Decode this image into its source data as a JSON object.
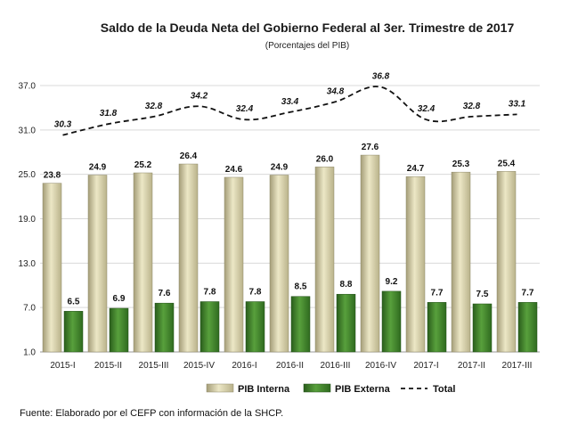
{
  "chart_data": {
    "type": "bar",
    "title": "Saldo de la Deuda Neta del Gobierno Federal al 3er. Trimestre de 2017",
    "subtitle": "(Porcentajes del PIB)",
    "categories": [
      "2015-I",
      "2015-II",
      "2015-III",
      "2015-IV",
      "2016-I",
      "2016-II",
      "2016-III",
      "2016-IV",
      "2017-I",
      "2017-II",
      "2017-III"
    ],
    "series": [
      {
        "name": "PIB Interna",
        "type": "bar",
        "color": "#cfc9a2",
        "values": [
          23.8,
          24.9,
          25.2,
          26.4,
          24.6,
          24.9,
          26.0,
          27.6,
          24.7,
          25.3,
          25.4
        ]
      },
      {
        "name": "PIB Externa",
        "type": "bar",
        "color": "#3f7a2a",
        "values": [
          6.5,
          6.9,
          7.6,
          7.8,
          7.8,
          8.5,
          8.8,
          9.2,
          7.7,
          7.5,
          7.7
        ]
      },
      {
        "name": "Total",
        "type": "line",
        "style": "dashed",
        "color": "#111111",
        "values": [
          30.3,
          31.8,
          32.8,
          34.2,
          32.4,
          33.4,
          34.8,
          36.8,
          32.4,
          32.8,
          33.1
        ]
      }
    ],
    "y_ticks": [
      "1.0",
      "7.0",
      "13.0",
      "19.0",
      "25.0",
      "31.0",
      "37.0"
    ],
    "ylim": [
      1,
      37
    ],
    "grid": true,
    "legend_position": "bottom"
  },
  "source": "Fuente: Elaborado por el CEFP con información de la SHCP."
}
